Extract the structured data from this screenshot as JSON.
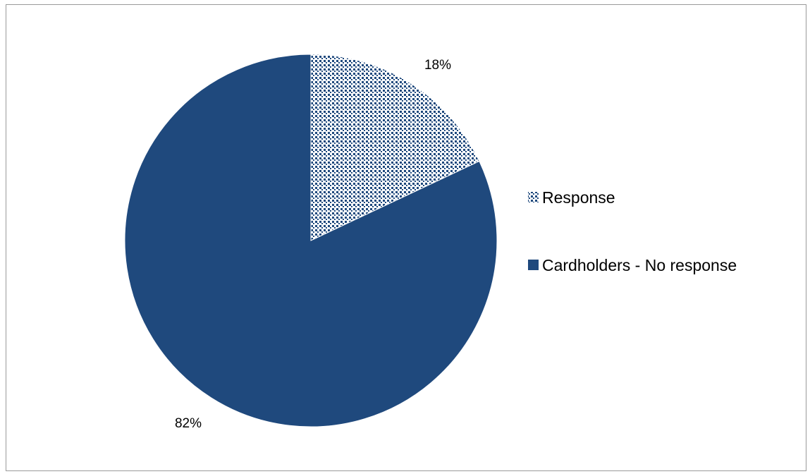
{
  "chart_data": {
    "type": "pie",
    "title": "",
    "slices": [
      {
        "label": "Response",
        "value": 18,
        "display": "18%",
        "fill": "pattern",
        "color": "#1F497D"
      },
      {
        "label": "Cardholders - No response",
        "value": 82,
        "display": "82%",
        "fill": "solid",
        "color": "#1F497D"
      }
    ],
    "start_angle_deg": 0,
    "direction": "clockwise",
    "legend": {
      "position": "right",
      "entries": [
        "Response",
        "Cardholders - No response"
      ]
    },
    "grid": false
  },
  "colors": {
    "slice_dark": "#1F497D",
    "pattern_background": "#ffffff",
    "border": "#9a9a9a"
  }
}
